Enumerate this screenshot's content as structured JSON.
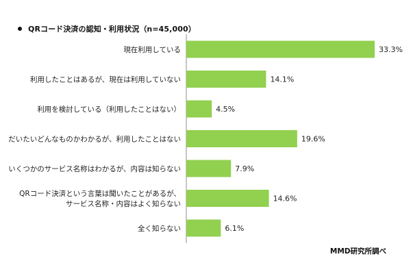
{
  "chart_data": {
    "type": "bar",
    "orientation": "horizontal",
    "title": "QRコード決済の認知・利用状況（n=45,000）",
    "categories": [
      [
        "現在利用している"
      ],
      [
        "利用したことはあるが、現在は利用していない"
      ],
      [
        "利用を検討している（利用したことはない）"
      ],
      [
        "だいたいどんなものかわかるが、利用したことはない"
      ],
      [
        "いくつかのサービス名称はわかるが、内容は知らない"
      ],
      [
        "QRコード決済という言葉は聞いたことがあるが、",
        "サービス名称・内容はよく知らない"
      ],
      [
        "全く知らない"
      ]
    ],
    "values": [
      33.3,
      14.1,
      4.5,
      19.6,
      7.9,
      14.6,
      6.1
    ],
    "value_labels": [
      "33.3%",
      "14.1%",
      "4.5%",
      "19.6%",
      "7.9%",
      "14.6%",
      "6.1%"
    ],
    "unit": "%",
    "xlim": [
      0,
      33.3
    ],
    "bar_color": "#92d050",
    "grid": false,
    "legend": "none"
  },
  "source_note": "MMD研究所調べ"
}
